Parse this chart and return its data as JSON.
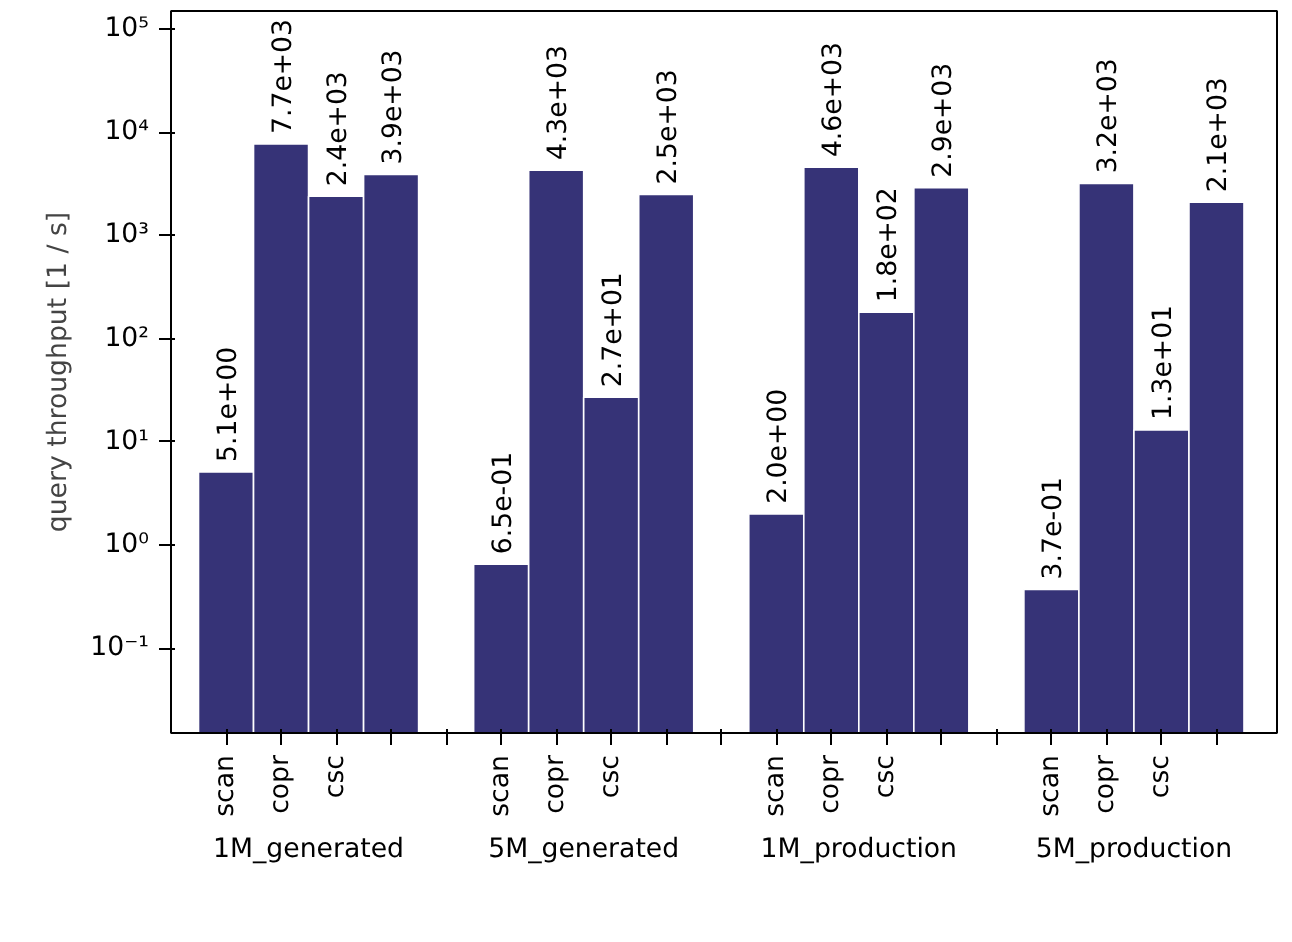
{
  "chart_data": {
    "type": "bar",
    "ylabel": "query throughput [1 / s]",
    "categories": [
      "scan",
      "copr",
      "csc",
      null,
      null,
      "scan",
      "copr",
      "csc",
      null,
      null,
      "scan",
      "copr",
      "csc",
      null,
      null,
      "scan",
      "copr",
      "csc",
      null
    ],
    "values": [
      5.1,
      7700,
      2400,
      3900,
      null,
      0.65,
      4300,
      27,
      2500,
      null,
      2.0,
      4600,
      180,
      2900,
      null,
      0.37,
      3200,
      13,
      2100
    ],
    "value_labels": [
      "5.1e+00",
      "7.7e+03",
      "2.4e+03",
      "3.9e+03",
      null,
      "6.5e-01",
      "4.3e+03",
      "2.7e+01",
      "2.5e+03",
      null,
      "2.0e+00",
      "4.6e+03",
      "1.8e+02",
      "2.9e+03",
      null,
      "3.7e-01",
      "3.2e+03",
      "1.3e+01",
      "2.1e+03"
    ],
    "annotations": [
      "1M_generated",
      "5M_generated",
      "1M_production",
      "5M_production"
    ],
    "color": "#363377",
    "log": "y",
    "ylim": [
      0.015,
      150000
    ],
    "yticks": [
      {
        "value": 0.1,
        "label": "10⁻¹"
      },
      {
        "value": 1,
        "label": "10⁰"
      },
      {
        "value": 10,
        "label": "10¹"
      },
      {
        "value": 100,
        "label": "10²"
      },
      {
        "value": 1000,
        "label": "10³"
      },
      {
        "value": 10000,
        "label": "10⁴"
      },
      {
        "value": 100000,
        "label": "10⁵"
      }
    ],
    "grid": false,
    "legend": false
  }
}
